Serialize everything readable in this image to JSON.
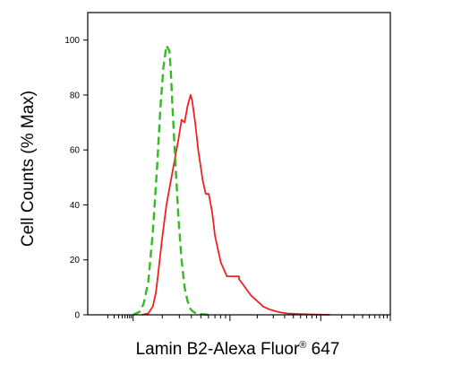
{
  "chart_data": {
    "type": "line",
    "title": "",
    "xlabel_main": "Lamin B2-Alexa Fluor",
    "xlabel_sup": "®",
    "xlabel_tail": " 647",
    "ylabel": "Cell Counts (% Max)",
    "x_scale": "log-like (biexponential)",
    "xlim": [
      0,
      1
    ],
    "ylim": [
      0,
      110
    ],
    "yticks": [
      0,
      20,
      40,
      60,
      80,
      100
    ],
    "ytick_labels": [
      "0",
      "20",
      "40",
      "60",
      "80",
      "100"
    ],
    "grid": false,
    "legend": "none",
    "colors": {
      "sample": "#ee2222",
      "control": "#33bb22",
      "axis": "#000000"
    },
    "series": [
      {
        "style": "solid",
        "color": "#ee2222",
        "x": [
          0.18,
          0.2,
          0.215,
          0.225,
          0.235,
          0.245,
          0.26,
          0.27,
          0.285,
          0.3,
          0.31,
          0.32,
          0.33,
          0.34,
          0.345,
          0.355,
          0.365,
          0.38,
          0.39,
          0.4,
          0.41,
          0.415,
          0.42,
          0.43,
          0.44,
          0.46,
          0.48,
          0.5,
          0.5,
          0.52,
          0.54,
          0.56,
          0.58,
          0.6,
          0.62,
          0.64,
          0.66,
          0.7,
          0.75,
          0.8
        ],
        "values": [
          0,
          0.5,
          3,
          8,
          17,
          27,
          40,
          46,
          55,
          64,
          71,
          70,
          76,
          80,
          78,
          70,
          60,
          49,
          44,
          44,
          38,
          34,
          29,
          24,
          19,
          14,
          14,
          14,
          13,
          10,
          7,
          5,
          3,
          2,
          1.3,
          0.8,
          0.5,
          0.3,
          0.1,
          0
        ]
      },
      {
        "style": "dashed",
        "color": "#33bb22",
        "x": [
          0.15,
          0.17,
          0.185,
          0.2,
          0.215,
          0.23,
          0.24,
          0.25,
          0.26,
          0.27,
          0.275,
          0.28,
          0.29,
          0.3,
          0.31,
          0.32,
          0.33,
          0.34,
          0.35,
          0.36,
          0.38,
          0.4
        ],
        "values": [
          0,
          1,
          4,
          12,
          30,
          55,
          75,
          90,
          98,
          96,
          88,
          76,
          55,
          35,
          20,
          10,
          5,
          2,
          1,
          0.5,
          0.2,
          0
        ]
      }
    ]
  }
}
